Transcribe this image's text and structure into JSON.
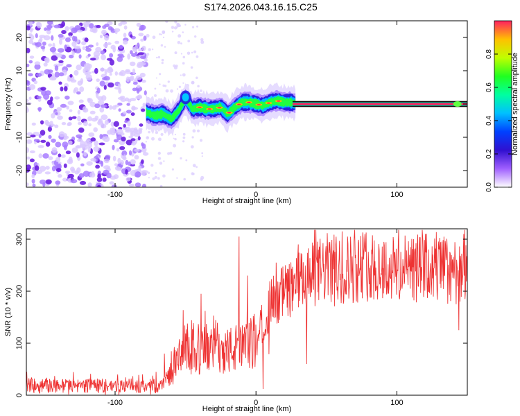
{
  "page_title": "S174.2026.043.16.15.C25",
  "chart_data": [
    {
      "type": "heatmap",
      "xlabel": "Height of straight line (km)",
      "ylabel": "Frequency (Hz)",
      "xlim": [
        -163,
        150
      ],
      "ylim": [
        -25,
        25
      ],
      "x_ticks": [
        -100,
        0,
        100
      ],
      "x_tick_labels": [
        "-100",
        "0",
        "100"
      ],
      "y_ticks": [
        -20,
        -10,
        0,
        10,
        20
      ],
      "y_tick_labels": [
        "-20",
        "-10",
        "0",
        "10",
        "20"
      ],
      "colorbar": {
        "label": "Normalized spectral amplitude",
        "range": [
          0,
          1
        ],
        "ticks": [
          0.0,
          0.2,
          0.4,
          0.6,
          0.8
        ],
        "tick_labels": [
          "0.0",
          "0.2",
          "0.4",
          "0.6",
          "0.8"
        ],
        "colormap": [
          "#ffffff",
          "#a060ff",
          "#3010d0",
          "#0040ff",
          "#00c0ff",
          "#00ffa0",
          "#20ff20",
          "#c0ff00",
          "#ffc000",
          "#ff2060"
        ]
      },
      "ridge": {
        "x": [
          -78,
          -72,
          -66,
          -60,
          -55,
          -50,
          -45,
          -40,
          -35,
          -30,
          -25,
          -20,
          -15,
          -10,
          -5,
          0,
          5,
          10,
          15,
          20,
          25,
          30,
          50,
          100,
          150
        ],
        "y": [
          -2.5,
          -3.5,
          -3.0,
          -4.5,
          -2.0,
          1.5,
          -1.5,
          -1.0,
          -1.5,
          -1.5,
          -1.0,
          -3.0,
          -1.0,
          0.5,
          0.5,
          0.0,
          -0.5,
          0.5,
          1.0,
          0.5,
          0.5,
          0.0,
          0.0,
          0.0,
          0.0
        ]
      },
      "noise_region_x": [
        -163,
        -78
      ]
    },
    {
      "type": "line",
      "xlabel": "Height of straight line (km)",
      "ylabel": "SNR (10 * v/v)",
      "xlim": [
        -163,
        150
      ],
      "ylim": [
        0,
        320
      ],
      "x_ticks": [
        -100,
        0,
        100
      ],
      "x_tick_labels": [
        "-100",
        "0",
        "100"
      ],
      "y_ticks": [
        0,
        100,
        200,
        300
      ],
      "y_tick_labels": [
        "0",
        "100",
        "200",
        "300"
      ],
      "line_color": "#ee3333",
      "trend_x": [
        -163,
        -140,
        -120,
        -100,
        -80,
        -67,
        -60,
        -50,
        -45,
        -40,
        -30,
        -20,
        -12,
        -5,
        0,
        5,
        10,
        15,
        25,
        30,
        40,
        50,
        60,
        70,
        80,
        100,
        120,
        140,
        150
      ],
      "trend_y": [
        18,
        18,
        18,
        18,
        18,
        18,
        45,
        90,
        95,
        80,
        100,
        85,
        90,
        95,
        100,
        135,
        175,
        190,
        205,
        215,
        230,
        245,
        240,
        245,
        250,
        240,
        245,
        240,
        245
      ],
      "peaks": [
        {
          "x": -12,
          "y": 305
        },
        {
          "x": -39,
          "y": 195
        },
        {
          "x": 118,
          "y": 318
        },
        {
          "x": 65,
          "y": 305
        },
        {
          "x": 30,
          "y": 290
        },
        {
          "x": -65,
          "y": 80
        },
        {
          "x": -6,
          "y": 230
        }
      ],
      "dips": [
        {
          "x": 144,
          "y": 125
        },
        {
          "x": 5,
          "y": 12
        },
        {
          "x": 36,
          "y": 60
        },
        {
          "x": -46,
          "y": 40
        }
      ]
    }
  ]
}
